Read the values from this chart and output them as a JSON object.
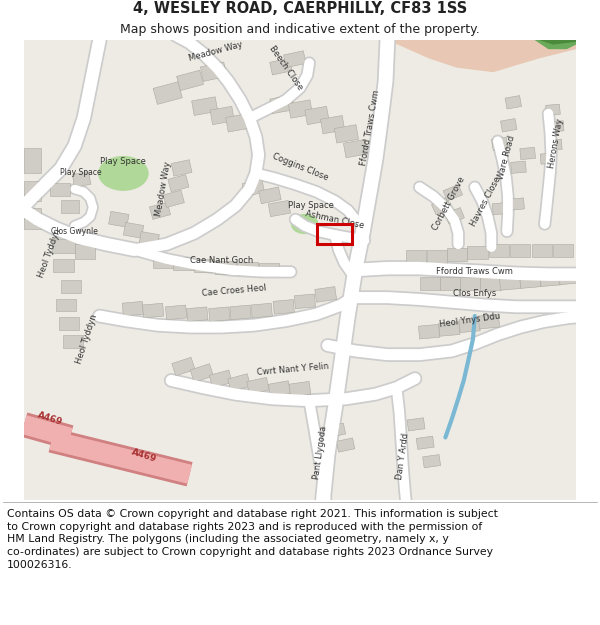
{
  "title_line1": "4, WESLEY ROAD, CAERPHILLY, CF83 1SS",
  "title_line2": "Map shows position and indicative extent of the property.",
  "footer": "Contains OS data © Crown copyright and database right 2021. This information is subject\nto Crown copyright and database rights 2023 and is reproduced with the permission of\nHM Land Registry. The polygons (including the associated geometry, namely x, y\nco-ordinates) are subject to Crown copyright and database rights 2023 Ordnance Survey\n100026316.",
  "map_bg": "#eeebe4",
  "road_color": "#ffffff",
  "building_color": "#d0cdc6",
  "pink_area_color": "#e8c8b4",
  "dark_green_color": "#6aaa5a",
  "mid_green_color": "#8ac070",
  "water_color": "#7ab8d4",
  "red_box_color": "#cc0000",
  "red_road_fill": "#f4c0c0",
  "red_road_border": "#e09090",
  "title_fontsize": 10.5,
  "subtitle_fontsize": 9,
  "footer_fontsize": 7.8,
  "label_fontsize": 6.0
}
